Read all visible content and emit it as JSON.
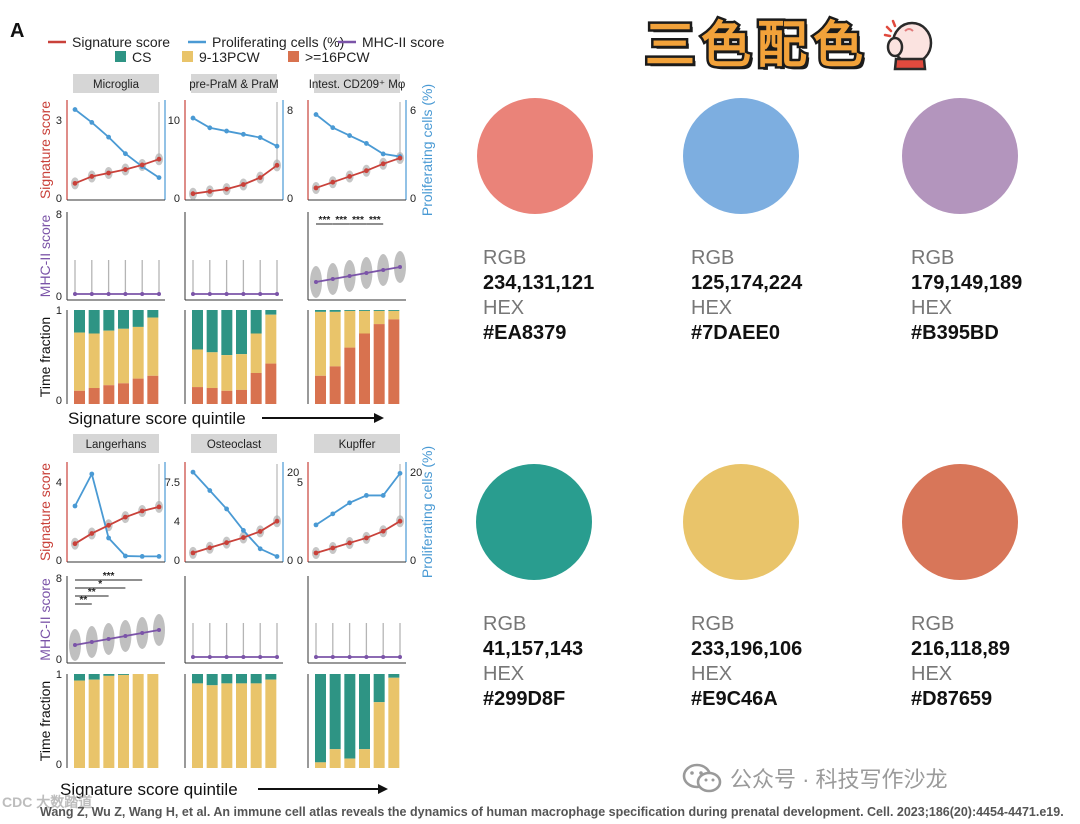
{
  "figure": {
    "panel_letter": "A",
    "legend_line": {
      "items": [
        {
          "label": "Signature score",
          "color": "#c9413a"
        },
        {
          "label": "Proliferating cells (%)",
          "color": "#4a9ad4"
        },
        {
          "label": "MHC-II score",
          "color": "#7b54a8"
        }
      ]
    },
    "legend_box": {
      "items": [
        {
          "label": "CS",
          "color": "#2e9484"
        },
        {
          "label": "9-13PCW",
          "color": "#e9c46a"
        },
        {
          "label": ">=16PCW",
          "color": "#d8724f"
        }
      ]
    },
    "axis_labels": {
      "sig": "Signature score",
      "prolif": "Proliferating cells (%)",
      "mhc": "MHC-II score",
      "time": "Time fraction",
      "quintile": "Signature score quintile"
    },
    "rows": [
      {
        "panels": [
          {
            "name": "Microglia",
            "sig_ticks": [
              "3",
              "0"
            ],
            "prolif_ticks": [],
            "sig": [
              0.55,
              0.85,
              1.0,
              1.15,
              1.35,
              1.6
            ],
            "prolif": [
              4.7,
              4.0,
              3.2,
              2.3,
              1.6,
              1.0
            ],
            "sig_max": 4,
            "prolif_max": 5,
            "mhc_ticks": [
              "8",
              "0"
            ],
            "mhc_stars": [],
            "stacked": [
              {
                "cs": 0.24,
                "mid": 0.62,
                "late": 0.14
              },
              {
                "cs": 0.25,
                "mid": 0.58,
                "late": 0.17
              },
              {
                "cs": 0.22,
                "mid": 0.58,
                "late": 0.2
              },
              {
                "cs": 0.2,
                "mid": 0.58,
                "late": 0.22
              },
              {
                "cs": 0.18,
                "mid": 0.55,
                "late": 0.27
              },
              {
                "cs": 0.08,
                "mid": 0.62,
                "late": 0.3
              }
            ]
          },
          {
            "name": "pre-PraM & PraM",
            "sig_ticks": [
              "10",
              "0"
            ],
            "prolif_ticks": [
              "8",
              "0"
            ],
            "sig": [
              0.3,
              0.6,
              0.9,
              1.5,
              2.4,
              4.0
            ],
            "prolif": [
              7.2,
              6.3,
              6.0,
              5.7,
              5.4,
              4.6
            ],
            "sig_max": 12,
            "prolif_max": 8.5,
            "mhc_ticks": [],
            "mhc_stars": [],
            "stacked": [
              {
                "cs": 0.42,
                "mid": 0.4,
                "late": 0.18
              },
              {
                "cs": 0.45,
                "mid": 0.38,
                "late": 0.17
              },
              {
                "cs": 0.48,
                "mid": 0.38,
                "late": 0.14
              },
              {
                "cs": 0.47,
                "mid": 0.38,
                "late": 0.15
              },
              {
                "cs": 0.25,
                "mid": 0.42,
                "late": 0.33
              },
              {
                "cs": 0.05,
                "mid": 0.52,
                "late": 0.43
              }
            ]
          },
          {
            "name": "Intest. CD209⁺ Mφ",
            "sig_ticks": [],
            "prolif_ticks": [
              "6",
              "0"
            ],
            "sig": [
              0.35,
              0.6,
              0.85,
              1.1,
              1.4,
              1.65
            ],
            "prolif": [
              6.2,
              5.2,
              4.6,
              4.0,
              3.2,
              3.0
            ],
            "sig_max": 4,
            "prolif_max": 7,
            "mhc_ticks": [],
            "mhc_stars": [
              "***",
              "***",
              "***",
              "***"
            ],
            "stacked": [
              {
                "cs": 0.02,
                "mid": 0.68,
                "late": 0.3
              },
              {
                "cs": 0.02,
                "mid": 0.58,
                "late": 0.4
              },
              {
                "cs": 0.01,
                "mid": 0.39,
                "late": 0.6
              },
              {
                "cs": 0.01,
                "mid": 0.24,
                "late": 0.75
              },
              {
                "cs": 0.01,
                "mid": 0.14,
                "late": 0.85
              },
              {
                "cs": 0.01,
                "mid": 0.09,
                "late": 0.9
              }
            ]
          }
        ]
      },
      {
        "panels": [
          {
            "name": "Langerhans",
            "sig_ticks": [
              "4",
              "0"
            ],
            "prolif_ticks": [],
            "sig": [
              0.7,
              1.2,
              1.6,
              2.0,
              2.3,
              2.5
            ],
            "prolif": [
              13,
              21,
              5,
              0.5,
              0.4,
              0.4
            ],
            "sig_max": 4.5,
            "prolif_max": 23,
            "mhc_ticks": [
              "8",
              "0"
            ],
            "mhc_stars": [
              "***",
              "*",
              "**",
              "**"
            ],
            "stacked": [
              {
                "cs": 0.07,
                "mid": 0.93,
                "late": 0.0
              },
              {
                "cs": 0.06,
                "mid": 0.94,
                "late": 0.0
              },
              {
                "cs": 0.02,
                "mid": 0.98,
                "late": 0.0
              },
              {
                "cs": 0.01,
                "mid": 0.99,
                "late": 0.0
              },
              {
                "cs": 0.0,
                "mid": 1.0,
                "late": 0.0
              },
              {
                "cs": 0.0,
                "mid": 1.0,
                "late": 0.0
              }
            ]
          },
          {
            "name": "Osteoclast",
            "sig_ticks": [
              "7.5",
              "4",
              "0"
            ],
            "prolif_ticks": [
              "20",
              "0"
            ],
            "sig": [
              0.5,
              1.0,
              1.5,
              2.0,
              2.6,
              3.6
            ],
            "prolif": [
              28,
              22,
              16,
              9,
              3,
              0.5
            ],
            "sig_max": 9,
            "prolif_max": 30,
            "mhc_ticks": [],
            "mhc_stars": [],
            "stacked": [
              {
                "cs": 0.1,
                "mid": 0.9,
                "late": 0.0
              },
              {
                "cs": 0.12,
                "mid": 0.88,
                "late": 0.0
              },
              {
                "cs": 0.1,
                "mid": 0.9,
                "late": 0.0
              },
              {
                "cs": 0.1,
                "mid": 0.9,
                "late": 0.0
              },
              {
                "cs": 0.1,
                "mid": 0.9,
                "late": 0.0
              },
              {
                "cs": 0.06,
                "mid": 0.94,
                "late": 0.0
              }
            ]
          },
          {
            "name": "Kupffer",
            "sig_ticks": [
              "5",
              "0"
            ],
            "prolif_ticks": [
              "20",
              "0"
            ],
            "sig": [
              0.3,
              0.6,
              0.9,
              1.2,
              1.6,
              2.2
            ],
            "prolif": [
              9,
              12,
              15,
              17,
              17,
              23
            ],
            "sig_max": 5.5,
            "prolif_max": 25,
            "mhc_ticks": [],
            "mhc_stars": [],
            "stacked": [
              {
                "cs": 0.94,
                "mid": 0.06,
                "late": 0.0
              },
              {
                "cs": 0.8,
                "mid": 0.2,
                "late": 0.0
              },
              {
                "cs": 0.9,
                "mid": 0.1,
                "late": 0.0
              },
              {
                "cs": 0.8,
                "mid": 0.2,
                "late": 0.0
              },
              {
                "cs": 0.3,
                "mid": 0.7,
                "late": 0.0
              },
              {
                "cs": 0.04,
                "mid": 0.96,
                "late": 0.0
              }
            ]
          }
        ]
      }
    ]
  },
  "header": {
    "title": "三色配色",
    "icon": "mitten-icon"
  },
  "swatches": [
    {
      "rgb": "234,131,121",
      "hex": "#EA8379",
      "color": "#EA8379"
    },
    {
      "rgb": "125,174,224",
      "hex": "#7DAEE0",
      "color": "#7DAEE0"
    },
    {
      "rgb": "179,149,189",
      "hex": "#B395BD",
      "color": "#B395BD"
    },
    {
      "rgb": "41,157,143",
      "hex": "#299D8F",
      "color": "#299D8F"
    },
    {
      "rgb": "233,196,106",
      "hex": "#E9C46A",
      "color": "#E9C46A"
    },
    {
      "rgb": "216,118,89",
      "hex": "#D87659",
      "color": "#D87659"
    }
  ],
  "labels": {
    "rgb": "RGB",
    "hex": "HEX"
  },
  "watermark": {
    "text": "公众号 · 科技写作沙龙",
    "icon": "wechat-icon"
  },
  "watermark_left": "CDC 大数踏道",
  "citation": "Wang Z, Wu Z, Wang H, et al. An immune cell atlas reveals the dynamics of human macrophage specification during prenatal development. Cell. 2023;186(20):4454-4471.e19."
}
